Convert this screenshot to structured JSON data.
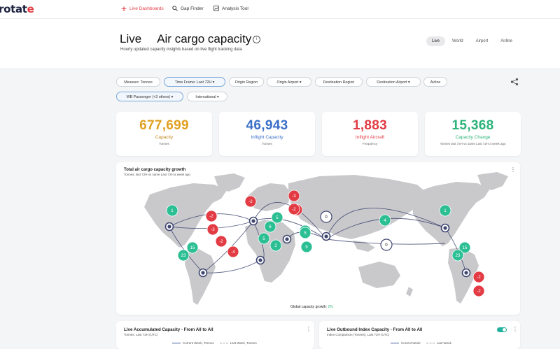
{
  "app": {
    "logo_main": "rotat",
    "logo_accent": "e"
  },
  "nav": {
    "live_dashboards": "Live Dashboards",
    "gap_finder": "Gap Finder",
    "analysis_tool": "Analysis Tool"
  },
  "header": {
    "title_live": "Live",
    "title_main": "Air cargo capacity",
    "subtitle": "Hourly updated capacity insights based on live flight tracking data",
    "info_icon": "i",
    "view_tabs": [
      "Live",
      "World",
      "Airport",
      "Airline"
    ]
  },
  "filters": {
    "measure": "Measure: Tonnes",
    "time_frame": "Time Frame: Last 72H ▾",
    "origin_region": "Origin Region",
    "origin_airport": "Origin Airport ▾",
    "destination_region": "Destination Region",
    "destination_airport": "Destination Airport ▾",
    "airline": "Airline",
    "wb_passenger": "WB Passenger (+3 others) ▾",
    "international": "International ▾"
  },
  "kpis": [
    {
      "value": "677,699",
      "label": "Capacity",
      "sub": "Tonnes",
      "color": "#e0a020"
    },
    {
      "value": "46,943",
      "label": "Inflight Capacity",
      "sub": "Tonnes",
      "color": "#3a6fc8"
    },
    {
      "value": "1,883",
      "label": "Inflight Aircraft",
      "sub": "Frequency",
      "color": "#e23b43"
    },
    {
      "value": "15,368",
      "label": "Capacity Change",
      "sub": "Tonnes last 72H vs same Last 72H a week ago",
      "color": "#2bb37a"
    }
  ],
  "map_panel": {
    "title": "Total air cargo capacity growth",
    "subtitle": "Tonnes, last 72H vs same Last 72H a week ago",
    "growth_label": "Global capacity growth:",
    "growth_value": "2%",
    "colors": {
      "positive": "#2dbf94",
      "negative": "#e23b43",
      "hub": "#3f4670",
      "neutral": "#ffffff"
    },
    "bubbles": [
      {
        "label": "1",
        "type": "positive"
      },
      {
        "label": "-2",
        "type": "negative"
      },
      {
        "label": "-3",
        "type": "negative"
      },
      {
        "label": "15",
        "type": "positive"
      },
      {
        "label": "23",
        "type": "positive"
      },
      {
        "label": "-2",
        "type": "negative"
      },
      {
        "label": "-2",
        "type": "negative"
      },
      {
        "label": "-4",
        "type": "negative"
      },
      {
        "label": "-2",
        "type": "negative"
      },
      {
        "label": "5",
        "type": "positive"
      },
      {
        "label": "6",
        "type": "positive"
      },
      {
        "label": "5",
        "type": "positive"
      },
      {
        "label": "2",
        "type": "positive"
      },
      {
        "label": "-3",
        "type": "negative"
      },
      {
        "label": "-2",
        "type": "negative"
      },
      {
        "label": "3",
        "type": "positive"
      },
      {
        "label": "5",
        "type": "positive"
      },
      {
        "label": "9",
        "type": "positive"
      },
      {
        "label": "0",
        "type": "neutral"
      },
      {
        "label": "4",
        "type": "positive"
      },
      {
        "label": "0",
        "type": "neutral"
      },
      {
        "label": "1",
        "type": "positive"
      },
      {
        "label": "15",
        "type": "positive"
      },
      {
        "label": "23",
        "type": "positive"
      },
      {
        "label": "-2",
        "type": "negative"
      },
      {
        "label": "-2",
        "type": "negative"
      }
    ]
  },
  "bottom_left": {
    "title": "Live Accumulated Capacity - From All to All",
    "subtitle": "Tonnes, Last 72H (UTC)",
    "legend_current": "Current Week, Tonnes",
    "legend_last": "Last Week, Tonnes"
  },
  "bottom_right": {
    "title": "Live Outbound Index Capacity - From All to All",
    "subtitle": "Index Comparison (Tonnes), Last 72H (UTC)",
    "legend_current": "Current Week",
    "legend_last": "Last Week"
  }
}
